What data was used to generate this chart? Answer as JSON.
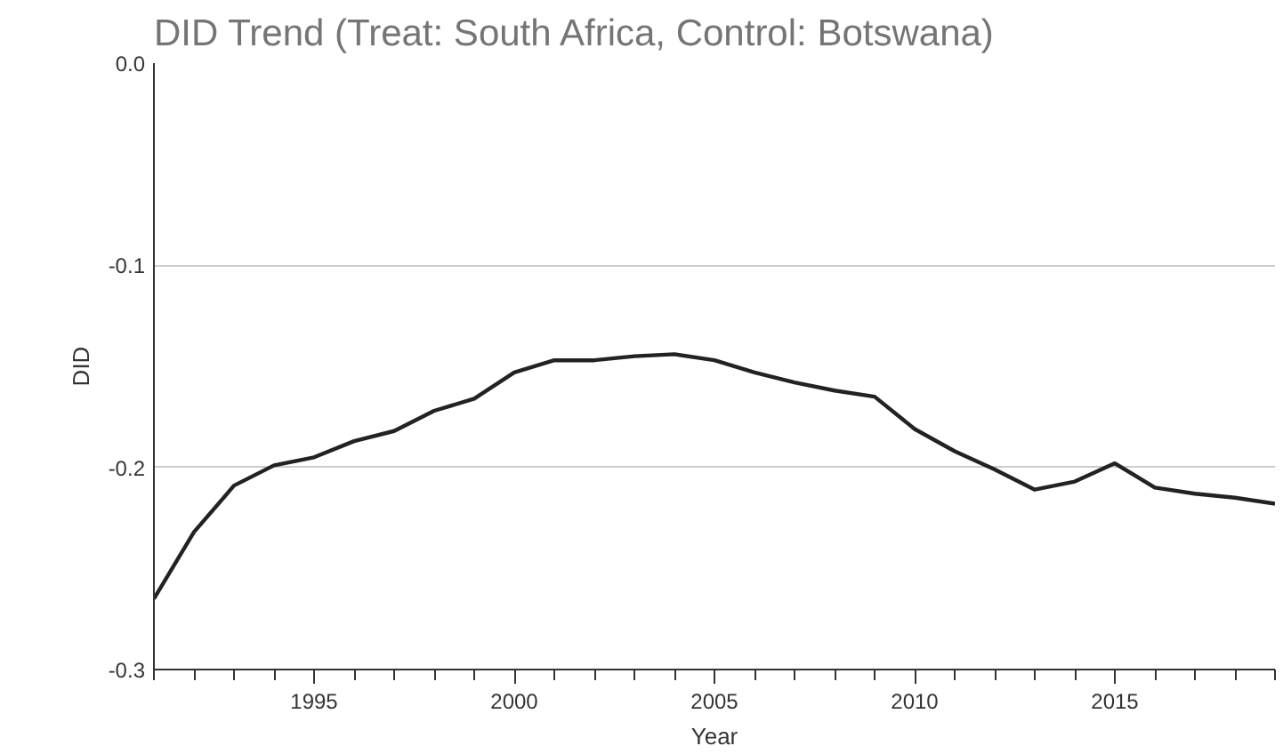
{
  "chart_data": {
    "type": "line",
    "title": "DID Trend (Treat: South Africa, Control: Botswana)",
    "xlabel": "Year",
    "ylabel": "DID",
    "x": [
      1991,
      1992,
      1993,
      1994,
      1995,
      1996,
      1997,
      1998,
      1999,
      2000,
      2001,
      2002,
      2003,
      2004,
      2005,
      2006,
      2007,
      2008,
      2009,
      2010,
      2011,
      2012,
      2013,
      2014,
      2015,
      2016,
      2017,
      2018,
      2019
    ],
    "series": [
      {
        "color": "#222222",
        "values": [
          -0.265,
          -0.232,
          -0.209,
          -0.199,
          -0.195,
          -0.187,
          -0.182,
          -0.172,
          -0.166,
          -0.153,
          -0.147,
          -0.147,
          -0.145,
          -0.144,
          -0.147,
          -0.153,
          -0.158,
          -0.162,
          -0.165,
          -0.181,
          -0.192,
          -0.201,
          -0.211,
          -0.207,
          -0.198,
          -0.21,
          -0.213,
          -0.215,
          -0.218
        ]
      }
    ],
    "xlim": [
      1991,
      2019
    ],
    "ylim": [
      -0.3,
      0.0
    ],
    "xticks": [
      1995,
      2000,
      2005,
      2010,
      2015
    ],
    "yticks": [
      {
        "value": -0.3,
        "label": "-0.3"
      },
      {
        "value": -0.2,
        "label": "-0.2"
      },
      {
        "value": -0.1,
        "label": "-0.1"
      },
      {
        "value": 0.0,
        "label": "0.0"
      }
    ],
    "grid": "y",
    "marker": "none",
    "line_style": "solid"
  }
}
